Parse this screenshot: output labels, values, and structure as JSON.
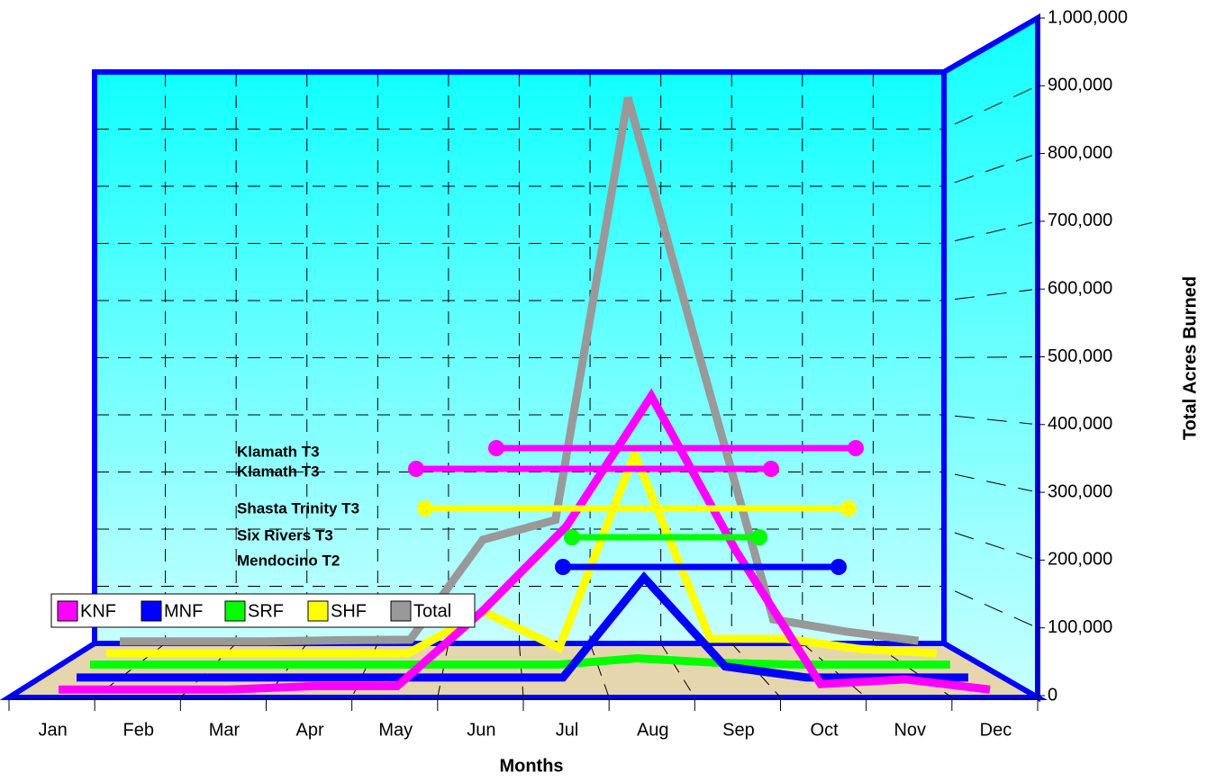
{
  "chart_data": {
    "type": "line3d",
    "xlabel": "Months",
    "ylabel": "Total Acres Burned",
    "categories": [
      "Jan",
      "Feb",
      "Mar",
      "Apr",
      "May",
      "Jun",
      "Jul",
      "Aug",
      "Sep",
      "Oct",
      "Nov",
      "Dec"
    ],
    "series": [
      {
        "name": "KNF",
        "color": "#ff00ff",
        "values": [
          5000,
          5000,
          5000,
          10000,
          10000,
          120000,
          246000,
          438000,
          210000,
          13000,
          20000,
          5000
        ]
      },
      {
        "name": "MNF",
        "color": "#0000ff",
        "values": [
          3000,
          3000,
          3000,
          3000,
          3000,
          3000,
          3000,
          157000,
          20000,
          3000,
          3000,
          3000
        ]
      },
      {
        "name": "SRF",
        "color": "#00ff00",
        "values": [
          5000,
          5000,
          5000,
          5000,
          5000,
          5000,
          5000,
          15000,
          8000,
          5000,
          5000,
          5000
        ]
      },
      {
        "name": "SHF",
        "color": "#ffff00",
        "values": [
          3000,
          3000,
          3000,
          3000,
          3000,
          72000,
          12000,
          333000,
          27000,
          27000,
          10000,
          3000
        ]
      },
      {
        "name": "Total",
        "color": "#999999",
        "values": [
          5000,
          5000,
          5000,
          7000,
          8000,
          180000,
          214000,
          941000,
          489000,
          43000,
          22000,
          6000
        ]
      }
    ],
    "ylim": [
      0,
      1000000
    ],
    "yticks": [
      0,
      {
        "value": 100000,
        "label": "100,000"
      },
      {
        "value": 200000,
        "label": "200,000"
      },
      {
        "value": 300000,
        "label": "300,000"
      },
      {
        "value": 400000,
        "label": "400,000"
      },
      {
        "value": 500000,
        "label": "500,000"
      },
      {
        "value": 600000,
        "label": "600,000"
      },
      {
        "value": 700000,
        "label": "700,000"
      },
      {
        "value": 800000,
        "label": "800,000"
      },
      {
        "value": 900000,
        "label": "900,000"
      },
      {
        "value": 1000000,
        "label": "1,000,000"
      }
    ],
    "grid": true,
    "legend": "lower left",
    "annotations": [
      {
        "text": "Klamath T3",
        "color": "#ff00ff"
      },
      {
        "text": "Klamath T3",
        "color": "#ff00ff"
      },
      {
        "text": "Shasta Trinity T3",
        "color": "#ffff00"
      },
      {
        "text": "Six Rivers T3",
        "color": "#00ff00"
      },
      {
        "text": "Mendocino T2",
        "color": "#0000ff"
      }
    ]
  }
}
